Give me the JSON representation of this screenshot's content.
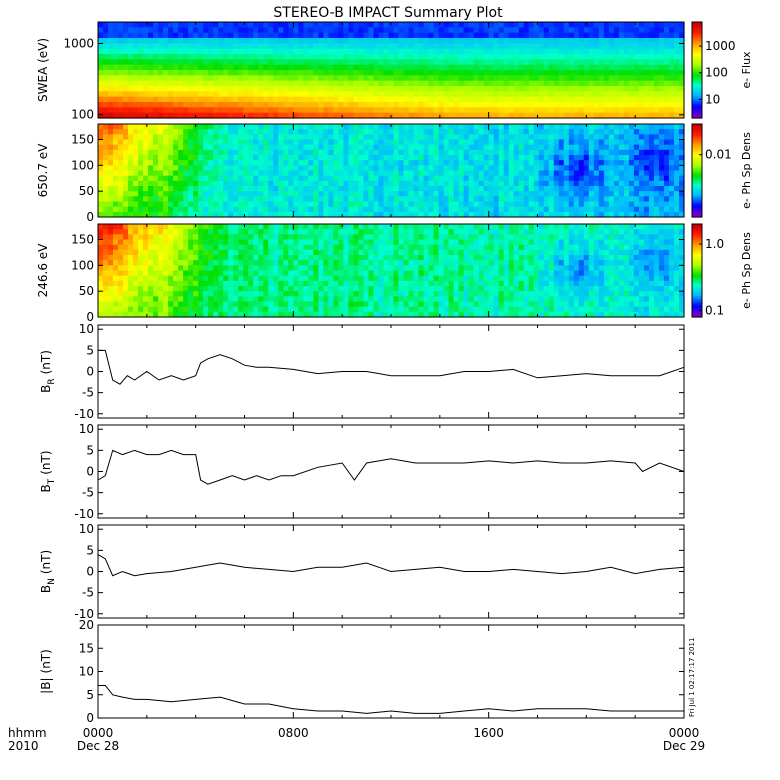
{
  "title": "STEREO-B IMPACT Summary Plot",
  "time_axis": {
    "corner_top": "hhmm",
    "corner_bottom": "2010",
    "ticks": [
      {
        "hours": 0,
        "label": "0000",
        "date": "Dec 28"
      },
      {
        "hours": 8,
        "label": "0800",
        "date": ""
      },
      {
        "hours": 16,
        "label": "1600",
        "date": ""
      },
      {
        "hours": 24,
        "label": "0000",
        "date": "Dec 29"
      }
    ],
    "range_hours": [
      0,
      24
    ]
  },
  "stamp": "Fri Jul  1 02:17:17 2011",
  "colors": {
    "line": "#000000",
    "colormap": [
      "#7a00c8",
      "#0000ff",
      "#00b4ff",
      "#00ffcc",
      "#00e000",
      "#aaff00",
      "#ffff00",
      "#ffa000",
      "#ff2000",
      "#c80000"
    ]
  },
  "chart_data": [
    {
      "type": "heatmap",
      "panel": "swea",
      "ylabel": "SWEA (eV)",
      "yscale": "log",
      "ylim": [
        90,
        2000
      ],
      "yticks": [
        {
          "v": 100,
          "label": "100"
        },
        {
          "v": 1000,
          "label": "1000"
        }
      ],
      "colorbar": {
        "label": "e- Flux",
        "scale": "log",
        "ticks": [
          {
            "v": 10,
            "label": "10"
          },
          {
            "v": 100,
            "label": "100"
          },
          {
            "v": 1000,
            "label": "1000"
          }
        ],
        "range": [
          2,
          8000
        ]
      }
    },
    {
      "type": "heatmap",
      "panel": "pad650",
      "ylabel": "650.7 eV",
      "ylim": [
        0,
        180
      ],
      "yticks": [
        {
          "v": 0,
          "label": "0"
        },
        {
          "v": 50,
          "label": "50"
        },
        {
          "v": 100,
          "label": "100"
        },
        {
          "v": 150,
          "label": "150"
        }
      ],
      "colorbar": {
        "label": "e- Ph Sp Dens",
        "scale": "log",
        "ticks": [
          {
            "v": 0.01,
            "label": "0.01"
          }
        ],
        "range": [
          0.0006,
          0.04
        ]
      }
    },
    {
      "type": "heatmap",
      "panel": "pad246",
      "ylabel": "246.6 eV",
      "ylim": [
        0,
        180
      ],
      "yticks": [
        {
          "v": 0,
          "label": "0"
        },
        {
          "v": 50,
          "label": "50"
        },
        {
          "v": 100,
          "label": "100"
        },
        {
          "v": 150,
          "label": "150"
        }
      ],
      "colorbar": {
        "label": "e- Ph Sp Dens",
        "scale": "log",
        "ticks": [
          {
            "v": 0.1,
            "label": "0.1"
          },
          {
            "v": 1.0,
            "label": "1.0"
          }
        ],
        "range": [
          0.08,
          2.0
        ]
      }
    },
    {
      "type": "line",
      "panel": "br",
      "ylabel": "B",
      "ysub": "R",
      "yunit": "(nT)",
      "ylim": [
        -11,
        11
      ],
      "yticks": [
        {
          "v": -10,
          "label": "-10"
        },
        {
          "v": -5,
          "label": "-5"
        },
        {
          "v": 0,
          "label": "0"
        },
        {
          "v": 5,
          "label": "5"
        },
        {
          "v": 10,
          "label": "10"
        }
      ],
      "x": [
        0,
        0.3,
        0.6,
        0.9,
        1.2,
        1.5,
        2.0,
        2.5,
        3.0,
        3.5,
        4.0,
        4.2,
        4.5,
        5.0,
        5.5,
        6.0,
        6.5,
        7.0,
        8.0,
        9.0,
        10.0,
        11.0,
        12.0,
        13.0,
        14.0,
        15.0,
        16.0,
        17.0,
        18.0,
        19.0,
        20.0,
        21.0,
        22.0,
        23.0,
        24.0
      ],
      "y": [
        5,
        5,
        -2,
        -3,
        -1,
        -2,
        0,
        -2,
        -1,
        -2,
        -1,
        2,
        3,
        4,
        3,
        1.5,
        1,
        1,
        0.5,
        -0.5,
        0,
        0,
        -1,
        -1,
        -1,
        0,
        0,
        0.5,
        -1.5,
        -1,
        -0.5,
        -1,
        -1,
        -1,
        1
      ]
    },
    {
      "type": "line",
      "panel": "bt",
      "ylabel": "B",
      "ysub": "T",
      "yunit": "(nT)",
      "ylim": [
        -11,
        11
      ],
      "yticks": [
        {
          "v": -10,
          "label": "-10"
        },
        {
          "v": -5,
          "label": "-5"
        },
        {
          "v": 0,
          "label": "0"
        },
        {
          "v": 5,
          "label": "5"
        },
        {
          "v": 10,
          "label": "10"
        }
      ],
      "x": [
        0,
        0.3,
        0.6,
        1.0,
        1.5,
        2.0,
        2.5,
        3.0,
        3.5,
        4.0,
        4.2,
        4.5,
        5.0,
        5.5,
        6.0,
        6.5,
        7.0,
        7.5,
        8.0,
        9.0,
        10.0,
        10.5,
        11.0,
        11.5,
        12.0,
        13.0,
        14.0,
        15.0,
        16.0,
        17.0,
        18.0,
        19.0,
        20.0,
        21.0,
        22.0,
        22.3,
        23.0,
        24.0
      ],
      "y": [
        -2,
        -1,
        5,
        4,
        5,
        4,
        4,
        5,
        4,
        4,
        -2,
        -3,
        -2,
        -1,
        -2,
        -1,
        -2,
        -1,
        -1,
        1,
        2,
        -2,
        2,
        2.5,
        3,
        2,
        2,
        2,
        2.5,
        2,
        2.5,
        2,
        2,
        2.5,
        2,
        0,
        2,
        0
      ]
    },
    {
      "type": "line",
      "panel": "bn",
      "ylabel": "B",
      "ysub": "N",
      "yunit": "(nT)",
      "ylim": [
        -11,
        11
      ],
      "yticks": [
        {
          "v": -10,
          "label": "-10"
        },
        {
          "v": -5,
          "label": "-5"
        },
        {
          "v": 0,
          "label": "0"
        },
        {
          "v": 5,
          "label": "5"
        },
        {
          "v": 10,
          "label": "10"
        }
      ],
      "x": [
        0,
        0.3,
        0.6,
        1.0,
        1.5,
        2.0,
        3.0,
        4.0,
        5.0,
        6.0,
        7.0,
        8.0,
        9.0,
        10.0,
        11.0,
        12.0,
        13.0,
        14.0,
        15.0,
        16.0,
        17.0,
        18.0,
        19.0,
        20.0,
        21.0,
        22.0,
        23.0,
        24.0
      ],
      "y": [
        4,
        3,
        -1,
        0,
        -1,
        -0.5,
        0,
        1,
        2,
        1,
        0.5,
        0,
        1,
        1,
        2,
        0,
        0.5,
        1,
        0,
        0,
        0.5,
        0,
        -0.5,
        0,
        1,
        -0.5,
        0.5,
        1
      ]
    },
    {
      "type": "line",
      "panel": "bmag",
      "ylabel": "|B|",
      "ysub": "",
      "yunit": "(nT)",
      "ylim": [
        0,
        20
      ],
      "yticks": [
        {
          "v": 0,
          "label": "0"
        },
        {
          "v": 5,
          "label": "5"
        },
        {
          "v": 10,
          "label": "10"
        },
        {
          "v": 15,
          "label": "15"
        },
        {
          "v": 20,
          "label": "20"
        }
      ],
      "x": [
        0,
        0.3,
        0.6,
        1.0,
        1.5,
        2.0,
        3.0,
        4.0,
        5.0,
        6.0,
        7.0,
        8.0,
        9.0,
        10.0,
        11.0,
        12.0,
        13.0,
        14.0,
        15.0,
        16.0,
        17.0,
        18.0,
        19.0,
        20.0,
        21.0,
        22.0,
        23.0,
        24.0
      ],
      "y": [
        7,
        7,
        5,
        4.5,
        4,
        4,
        3.5,
        4,
        4.5,
        3,
        3,
        2,
        1.5,
        1.5,
        1,
        1.5,
        1,
        1,
        1.5,
        2,
        1.5,
        2,
        2,
        2,
        1.5,
        1.5,
        1.5,
        1.5
      ]
    }
  ]
}
